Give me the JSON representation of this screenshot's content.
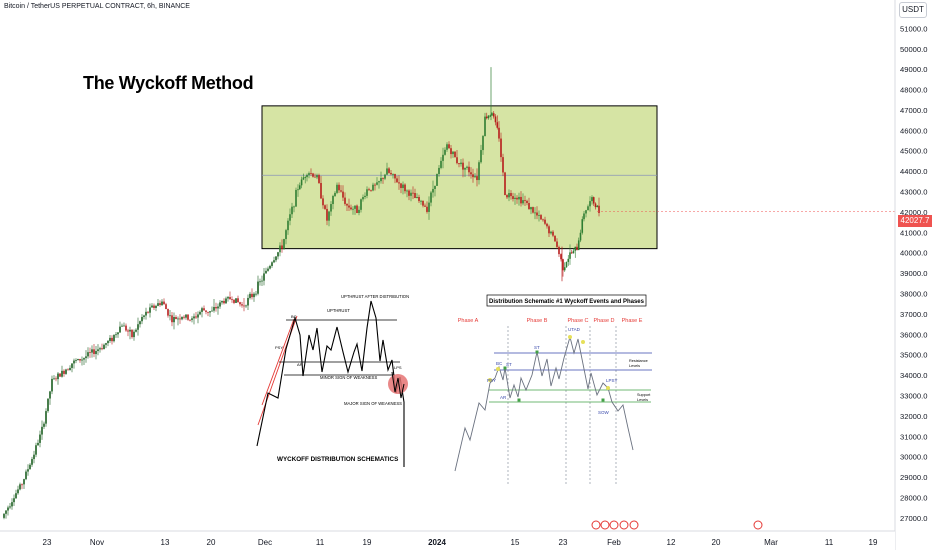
{
  "header": {
    "symbol_line": "Bitcoin / TetherUS PERPETUAL CONTRACT, 6h, BINANCE",
    "currency_badge": "USDT",
    "last_price": "42027.7"
  },
  "annotations": {
    "main_title": "The Wyckoff Method",
    "left_caption": "WYCKOFF DISTRIBUTION SCHEMATICS",
    "left_labels": {
      "upthrust_after": "UPTHRUST AFTER DISTRIBUTION",
      "upthrust": "UPTHRUST",
      "minor_sow": "MINOR SIGN OF WEAKNESS",
      "major_sow": "MAJOR SIGN OF WEAKNESS",
      "bc": "BC",
      "psy": "PSY",
      "ar": "AR",
      "lps": "LPS"
    },
    "right_title": "Distribution Schematic #1 Wyckoff Events and Phases",
    "phases": [
      "Phase A",
      "Phase B",
      "Phase C",
      "Phase D",
      "Phase E"
    ],
    "right_labels": {
      "psy": "PSY",
      "bc": "BC",
      "st": "ST",
      "st2": "ST",
      "ar": "AR",
      "utad": "UTAD",
      "lpsy": "LPSY",
      "sow": "SOW",
      "resistance": "Resistance\nLevels",
      "support": "Support\nLevels"
    }
  },
  "chart_data": {
    "type": "candlestick",
    "y_axis_ticks": [
      51000,
      50000,
      49000,
      48000,
      47000,
      46000,
      45000,
      44000,
      43000,
      42000,
      41000,
      40000,
      39000,
      38000,
      37000,
      36000,
      35000,
      34000,
      33000,
      32000,
      31000,
      30000,
      29000,
      28000,
      27000
    ],
    "y_axis_labels": [
      "51000.0",
      "50000.0",
      "49000.0",
      "48000.0",
      "47000.0",
      "46000.0",
      "45000.0",
      "44000.0",
      "43000.0",
      "42000.0",
      "41000.0",
      "40000.0",
      "39000.0",
      "38000.0",
      "37000.0",
      "36000.0",
      "35000.0",
      "34000.0",
      "33000.0",
      "32000.0",
      "31000.0",
      "30000.0",
      "29000.0",
      "28000.0",
      "27000.0"
    ],
    "x_axis_labels": [
      "23",
      "Nov",
      "13",
      "20",
      "Dec",
      "11",
      "19",
      "2024",
      "15",
      "23",
      "Feb",
      "12",
      "20",
      "Mar",
      "11",
      "19"
    ],
    "ylim": [
      26700,
      51900
    ],
    "range_box": {
      "top": 47200,
      "bottom": 40200,
      "mid": 43800
    },
    "price_path": [
      {
        "x": 0,
        "y": 27000
      },
      {
        "x": 10,
        "y": 27900
      },
      {
        "x": 20,
        "y": 28700
      },
      {
        "x": 30,
        "y": 29900
      },
      {
        "x": 40,
        "y": 31300
      },
      {
        "x": 50,
        "y": 33700
      },
      {
        "x": 60,
        "y": 34100
      },
      {
        "x": 70,
        "y": 34600
      },
      {
        "x": 80,
        "y": 34800
      },
      {
        "x": 90,
        "y": 35100
      },
      {
        "x": 100,
        "y": 35400
      },
      {
        "x": 110,
        "y": 35800
      },
      {
        "x": 120,
        "y": 36500
      },
      {
        "x": 130,
        "y": 35900
      },
      {
        "x": 140,
        "y": 36800
      },
      {
        "x": 150,
        "y": 37300
      },
      {
        "x": 160,
        "y": 37600
      },
      {
        "x": 170,
        "y": 36700
      },
      {
        "x": 180,
        "y": 36900
      },
      {
        "x": 190,
        "y": 36700
      },
      {
        "x": 200,
        "y": 37200
      },
      {
        "x": 210,
        "y": 37100
      },
      {
        "x": 220,
        "y": 37600
      },
      {
        "x": 230,
        "y": 37800
      },
      {
        "x": 240,
        "y": 37400
      },
      {
        "x": 250,
        "y": 37900
      },
      {
        "x": 260,
        "y": 38700
      },
      {
        "x": 270,
        "y": 39600
      },
      {
        "x": 280,
        "y": 40300
      },
      {
        "x": 288,
        "y": 41800
      },
      {
        "x": 296,
        "y": 43200
      },
      {
        "x": 305,
        "y": 44000
      },
      {
        "x": 315,
        "y": 43700
      },
      {
        "x": 325,
        "y": 41600
      },
      {
        "x": 335,
        "y": 43300
      },
      {
        "x": 345,
        "y": 42300
      },
      {
        "x": 355,
        "y": 42100
      },
      {
        "x": 365,
        "y": 43100
      },
      {
        "x": 375,
        "y": 43300
      },
      {
        "x": 385,
        "y": 44000
      },
      {
        "x": 395,
        "y": 43500
      },
      {
        "x": 405,
        "y": 43000
      },
      {
        "x": 415,
        "y": 42600
      },
      {
        "x": 425,
        "y": 42200
      },
      {
        "x": 435,
        "y": 43800
      },
      {
        "x": 445,
        "y": 45300
      },
      {
        "x": 455,
        "y": 44500
      },
      {
        "x": 465,
        "y": 44100
      },
      {
        "x": 475,
        "y": 43700
      },
      {
        "x": 483,
        "y": 46600
      },
      {
        "x": 490,
        "y": 46900
      },
      {
        "x": 497,
        "y": 45700
      },
      {
        "x": 503,
        "y": 42900
      },
      {
        "x": 513,
        "y": 42800
      },
      {
        "x": 523,
        "y": 42500
      },
      {
        "x": 533,
        "y": 41900
      },
      {
        "x": 543,
        "y": 41400
      },
      {
        "x": 553,
        "y": 40600
      },
      {
        "x": 561,
        "y": 39300
      },
      {
        "x": 568,
        "y": 39900
      },
      {
        "x": 575,
        "y": 40200
      },
      {
        "x": 582,
        "y": 42000
      },
      {
        "x": 590,
        "y": 42600
      },
      {
        "x": 597,
        "y": 42027.7
      }
    ]
  },
  "colors": {
    "range_fill": "#d6e4a4",
    "bull": "#26a69a",
    "bear": "#ef5350",
    "bull_dark": "#1b5e20",
    "last_price": "#ef5350"
  }
}
